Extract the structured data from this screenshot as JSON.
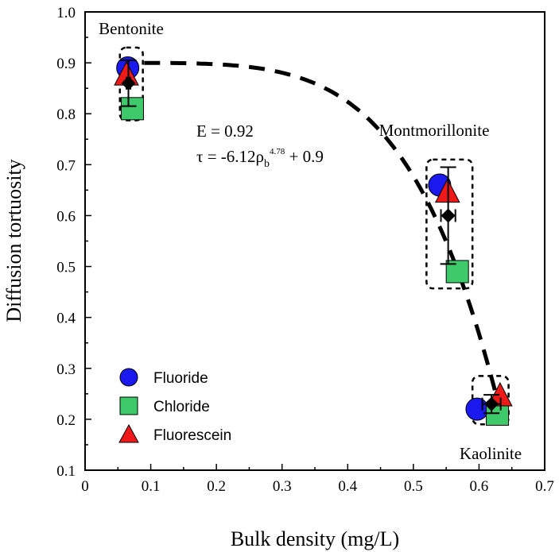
{
  "chart_data": {
    "type": "scatter",
    "xlabel": "Bulk density (mg/L)",
    "ylabel": "Diffusion tortuosity",
    "xlim": [
      0,
      0.7
    ],
    "ylim": [
      0.1,
      1.0
    ],
    "x_ticks": [
      "0",
      "0.1",
      "0.2",
      "0.3",
      "0.4",
      "0.5",
      "0.6",
      "0.7"
    ],
    "y_ticks": [
      "0.1",
      "0.2",
      "0.3",
      "0.4",
      "0.5",
      "0.6",
      "0.7",
      "0.8",
      "0.9",
      "1.0"
    ],
    "grid": false,
    "legend_position": "bottom-left",
    "series": [
      {
        "name": "Fluoride",
        "marker": "circle",
        "color": "#1a1aee",
        "points": [
          {
            "x": 0.065,
            "y": 0.89
          },
          {
            "x": 0.54,
            "y": 0.66
          },
          {
            "x": 0.597,
            "y": 0.22
          }
        ]
      },
      {
        "name": "Chloride",
        "marker": "square",
        "color": "#3ec96b",
        "points": [
          {
            "x": 0.072,
            "y": 0.81
          },
          {
            "x": 0.567,
            "y": 0.49
          },
          {
            "x": 0.628,
            "y": 0.21
          }
        ]
      },
      {
        "name": "Fluorescein",
        "marker": "triangle",
        "color": "#ee1a1a",
        "points": [
          {
            "x": 0.063,
            "y": 0.875
          },
          {
            "x": 0.552,
            "y": 0.645
          },
          {
            "x": 0.632,
            "y": 0.245
          }
        ]
      }
    ],
    "means": [
      {
        "x": 0.066,
        "y": 0.86,
        "y_err": 0.045,
        "x_err": 0.003
      },
      {
        "x": 0.553,
        "y": 0.6,
        "y_err": 0.095,
        "x_err": 0.011
      },
      {
        "x": 0.619,
        "y": 0.23,
        "y_err": 0.018,
        "x_err": 0.014
      }
    ],
    "fit_curve": {
      "a": 6.12,
      "b": 4.78,
      "c": 0.9
    },
    "group_labels": [
      {
        "text": "Bentonite",
        "x": 0.07,
        "y": 0.96
      },
      {
        "text": "Montmorillonite",
        "x": 0.57,
        "y": 0.755
      },
      {
        "text": "Kaolinite",
        "x": 0.62,
        "y": 0.12
      }
    ],
    "group_boxes": [
      {
        "x0": 0.053,
        "x1": 0.088,
        "y0": 0.787,
        "y1": 0.93
      },
      {
        "x0": 0.52,
        "x1": 0.59,
        "y0": 0.457,
        "y1": 0.71
      },
      {
        "x0": 0.59,
        "x1": 0.645,
        "y0": 0.19,
        "y1": 0.285
      }
    ],
    "annotations": {
      "efficiency": "E = 0.92",
      "equation_prefix": "τ = -6.12ρ",
      "equation_sub": "b",
      "equation_sup": "4.78",
      "equation_suffix": " + 0.9"
    }
  }
}
